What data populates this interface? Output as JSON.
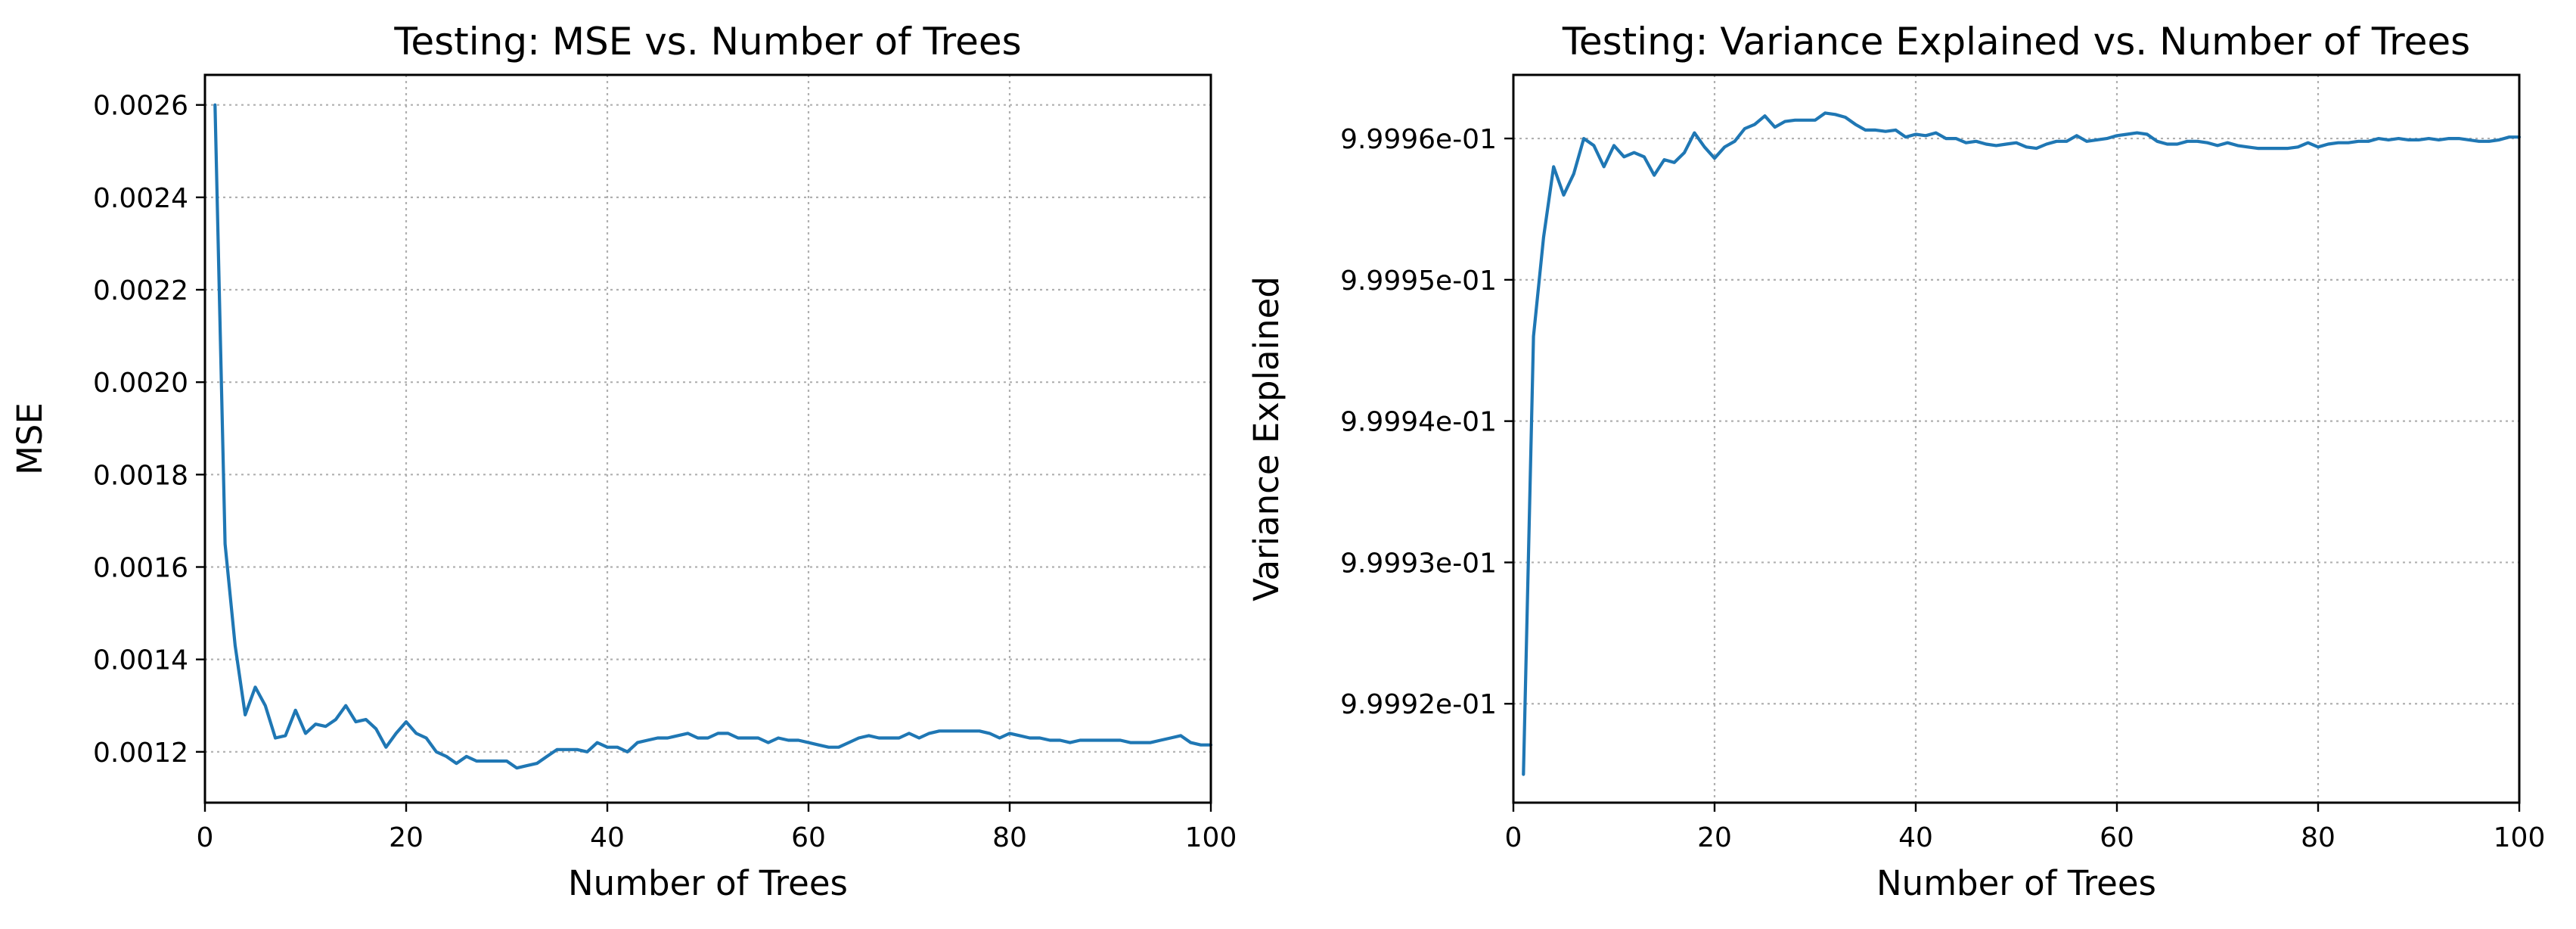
{
  "chart_data": [
    {
      "type": "line",
      "title": "Testing: MSE vs. Number of Trees",
      "xlabel": "Number of Trees",
      "ylabel": "MSE",
      "xlim": [
        0,
        100
      ],
      "ylim": [
        0.00109,
        0.002665
      ],
      "grid": true,
      "x_ticks": [
        0,
        20,
        40,
        60,
        80,
        100
      ],
      "x_tick_labels": [
        "0",
        "20",
        "40",
        "60",
        "80",
        "100"
      ],
      "y_ticks": [
        0.0012,
        0.0014,
        0.0016,
        0.0018,
        0.002,
        0.0022,
        0.0024,
        0.0026
      ],
      "y_tick_labels": [
        "0.0012",
        "0.0014",
        "0.0016",
        "0.0018",
        "0.0020",
        "0.0022",
        "0.0024",
        "0.0026"
      ],
      "series": [
        {
          "color": "#1f77b4",
          "x": [
            1,
            2,
            3,
            4,
            5,
            6,
            7,
            8,
            9,
            10,
            11,
            12,
            13,
            14,
            15,
            16,
            17,
            18,
            19,
            20,
            21,
            22,
            23,
            24,
            25,
            26,
            27,
            28,
            29,
            30,
            31,
            32,
            33,
            34,
            35,
            36,
            37,
            38,
            39,
            40,
            41,
            42,
            43,
            44,
            45,
            46,
            47,
            48,
            49,
            50,
            51,
            52,
            53,
            54,
            55,
            56,
            57,
            58,
            59,
            60,
            61,
            62,
            63,
            64,
            65,
            66,
            67,
            68,
            69,
            70,
            71,
            72,
            73,
            74,
            75,
            76,
            77,
            78,
            79,
            80,
            81,
            82,
            83,
            84,
            85,
            86,
            87,
            88,
            89,
            90,
            91,
            92,
            93,
            94,
            95,
            96,
            97,
            98,
            99,
            100
          ],
          "values": [
            0.0026,
            0.00165,
            0.00143,
            0.00128,
            0.00134,
            0.0013,
            0.00123,
            0.001235,
            0.00129,
            0.00124,
            0.00126,
            0.001255,
            0.00127,
            0.0013,
            0.001265,
            0.00127,
            0.00125,
            0.00121,
            0.00124,
            0.001265,
            0.00124,
            0.00123,
            0.0012,
            0.00119,
            0.001175,
            0.00119,
            0.00118,
            0.00118,
            0.00118,
            0.00118,
            0.001165,
            0.00117,
            0.001175,
            0.00119,
            0.001205,
            0.001205,
            0.001205,
            0.0012,
            0.00122,
            0.00121,
            0.00121,
            0.0012,
            0.00122,
            0.001225,
            0.00123,
            0.00123,
            0.001235,
            0.00124,
            0.00123,
            0.00123,
            0.00124,
            0.00124,
            0.00123,
            0.00123,
            0.00123,
            0.00122,
            0.00123,
            0.001225,
            0.001225,
            0.00122,
            0.001215,
            0.00121,
            0.00121,
            0.00122,
            0.00123,
            0.001235,
            0.00123,
            0.00123,
            0.00123,
            0.00124,
            0.00123,
            0.00124,
            0.001245,
            0.001245,
            0.001245,
            0.001245,
            0.001245,
            0.00124,
            0.00123,
            0.00124,
            0.001235,
            0.00123,
            0.00123,
            0.001225,
            0.001225,
            0.00122,
            0.001225,
            0.001225,
            0.001225,
            0.001225,
            0.001225,
            0.00122,
            0.00122,
            0.00122,
            0.001225,
            0.00123,
            0.001235,
            0.00122,
            0.001215,
            0.001215
          ]
        }
      ]
    },
    {
      "type": "line",
      "title": "Testing: Variance Explained vs. Number of Trees",
      "xlabel": "Number of Trees",
      "ylabel": "Variance Explained",
      "xlim": [
        0,
        100
      ],
      "ylim": [
        0.999913,
        0.9999645
      ],
      "grid": true,
      "x_ticks": [
        0,
        20,
        40,
        60,
        80,
        100
      ],
      "x_tick_labels": [
        "0",
        "20",
        "40",
        "60",
        "80",
        "100"
      ],
      "y_ticks": [
        0.99992,
        0.99993,
        0.99994,
        0.99995,
        0.99996
      ],
      "y_tick_labels": [
        "9.9992e-01",
        "9.9993e-01",
        "9.9994e-01",
        "9.9995e-01",
        "9.9996e-01"
      ],
      "series": [
        {
          "color": "#1f77b4",
          "x": [
            1,
            2,
            3,
            4,
            5,
            6,
            7,
            8,
            9,
            10,
            11,
            12,
            13,
            14,
            15,
            16,
            17,
            18,
            19,
            20,
            21,
            22,
            23,
            24,
            25,
            26,
            27,
            28,
            29,
            30,
            31,
            32,
            33,
            34,
            35,
            36,
            37,
            38,
            39,
            40,
            41,
            42,
            43,
            44,
            45,
            46,
            47,
            48,
            49,
            50,
            51,
            52,
            53,
            54,
            55,
            56,
            57,
            58,
            59,
            60,
            61,
            62,
            63,
            64,
            65,
            66,
            67,
            68,
            69,
            70,
            71,
            72,
            73,
            74,
            75,
            76,
            77,
            78,
            79,
            80,
            81,
            82,
            83,
            84,
            85,
            86,
            87,
            88,
            89,
            90,
            91,
            92,
            93,
            94,
            95,
            96,
            97,
            98,
            99,
            100
          ],
          "values": [
            0.999915,
            0.999946,
            0.999953,
            0.999958,
            0.999956,
            0.9999575,
            0.99996,
            0.9999595,
            0.999958,
            0.9999595,
            0.9999587,
            0.999959,
            0.9999587,
            0.9999574,
            0.9999585,
            0.9999583,
            0.999959,
            0.9999604,
            0.9999594,
            0.9999586,
            0.9999594,
            0.9999598,
            0.9999607,
            0.999961,
            0.9999616,
            0.9999608,
            0.9999612,
            0.9999613,
            0.9999613,
            0.9999613,
            0.9999618,
            0.9999617,
            0.9999615,
            0.999961,
            0.9999606,
            0.9999606,
            0.9999605,
            0.9999606,
            0.9999601,
            0.9999603,
            0.9999602,
            0.9999604,
            0.99996,
            0.99996,
            0.9999597,
            0.9999598,
            0.9999596,
            0.9999595,
            0.9999596,
            0.9999597,
            0.9999594,
            0.9999593,
            0.9999596,
            0.9999598,
            0.9999598,
            0.9999602,
            0.9999598,
            0.9999599,
            0.99996,
            0.9999602,
            0.9999603,
            0.9999604,
            0.9999603,
            0.9999598,
            0.9999596,
            0.9999596,
            0.9999598,
            0.9999598,
            0.9999597,
            0.9999595,
            0.9999597,
            0.9999595,
            0.9999594,
            0.9999593,
            0.9999593,
            0.9999593,
            0.9999593,
            0.9999594,
            0.9999597,
            0.9999594,
            0.9999596,
            0.9999597,
            0.9999597,
            0.9999598,
            0.9999598,
            0.99996,
            0.9999599,
            0.99996,
            0.9999599,
            0.9999599,
            0.99996,
            0.9999599,
            0.99996,
            0.99996,
            0.9999599,
            0.9999598,
            0.9999598,
            0.9999599,
            0.9999601,
            0.9999601
          ]
        }
      ]
    }
  ]
}
